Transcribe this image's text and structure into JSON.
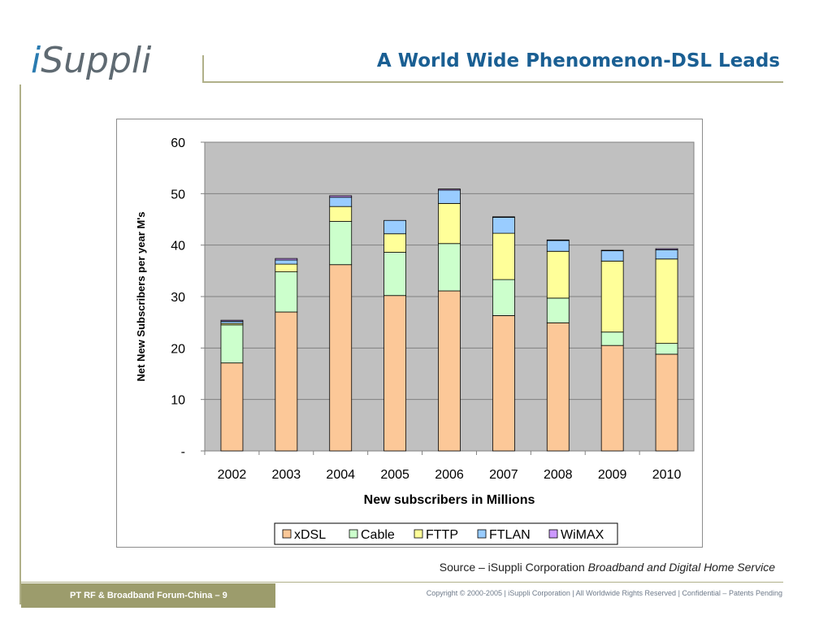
{
  "header": {
    "logo_text_i": "i",
    "logo_text_rest": "Suppli",
    "title": "A World Wide Phenomenon-DSL Leads"
  },
  "colors": {
    "xDSL": "#fcc898",
    "Cable": "#ccffcc",
    "FTTP": "#ffff99",
    "FTLAN": "#99ccff",
    "WiMAX": "#cc99ff",
    "plot_bg": "#c0c0c0",
    "title_blue": "#1a5f93",
    "olive": "#9c9c6c"
  },
  "chart_data": {
    "type": "bar",
    "stacked": true,
    "categories": [
      "2002",
      "2003",
      "2004",
      "2005",
      "2006",
      "2007",
      "2008",
      "2009",
      "2010"
    ],
    "series": [
      {
        "name": "xDSL",
        "values": [
          17.1,
          27.0,
          36.2,
          30.2,
          31.1,
          26.3,
          24.9,
          20.5,
          18.8
        ]
      },
      {
        "name": "Cable",
        "values": [
          7.4,
          7.8,
          8.4,
          8.4,
          9.2,
          7.0,
          4.8,
          2.6,
          2.1
        ]
      },
      {
        "name": "FTTP",
        "values": [
          0.3,
          1.5,
          2.9,
          3.6,
          7.8,
          9.0,
          9.1,
          13.8,
          16.4
        ]
      },
      {
        "name": "FTLAN",
        "values": [
          0.4,
          0.8,
          1.8,
          2.6,
          2.6,
          3.1,
          2.1,
          2.0,
          1.8
        ]
      },
      {
        "name": "WiMAX",
        "values": [
          0.2,
          0.3,
          0.3,
          0.0,
          0.2,
          0.1,
          0.1,
          0.1,
          0.2
        ]
      }
    ],
    "xlabel": "New subscribers in Millions",
    "ylabel": "Net New Subscribers per year M's",
    "ylim": [
      0,
      60
    ],
    "yticks": [
      0,
      10,
      20,
      30,
      40,
      50,
      60
    ],
    "ytick_labels": [
      "-",
      "10",
      "20",
      "30",
      "40",
      "50",
      "60"
    ],
    "grid": true,
    "legend_position": "bottom"
  },
  "source": {
    "prefix": "Source – iSuppli Corporation ",
    "italic": "Broadband and Digital Home Service"
  },
  "footer": {
    "event": "PT RF & Broadband Forum-China – 9",
    "copyright": "Copyright © 2000-2005  |  iSuppli Corporation  |  All Worldwide Rights Reserved  |  Confidential – Patents Pending"
  }
}
